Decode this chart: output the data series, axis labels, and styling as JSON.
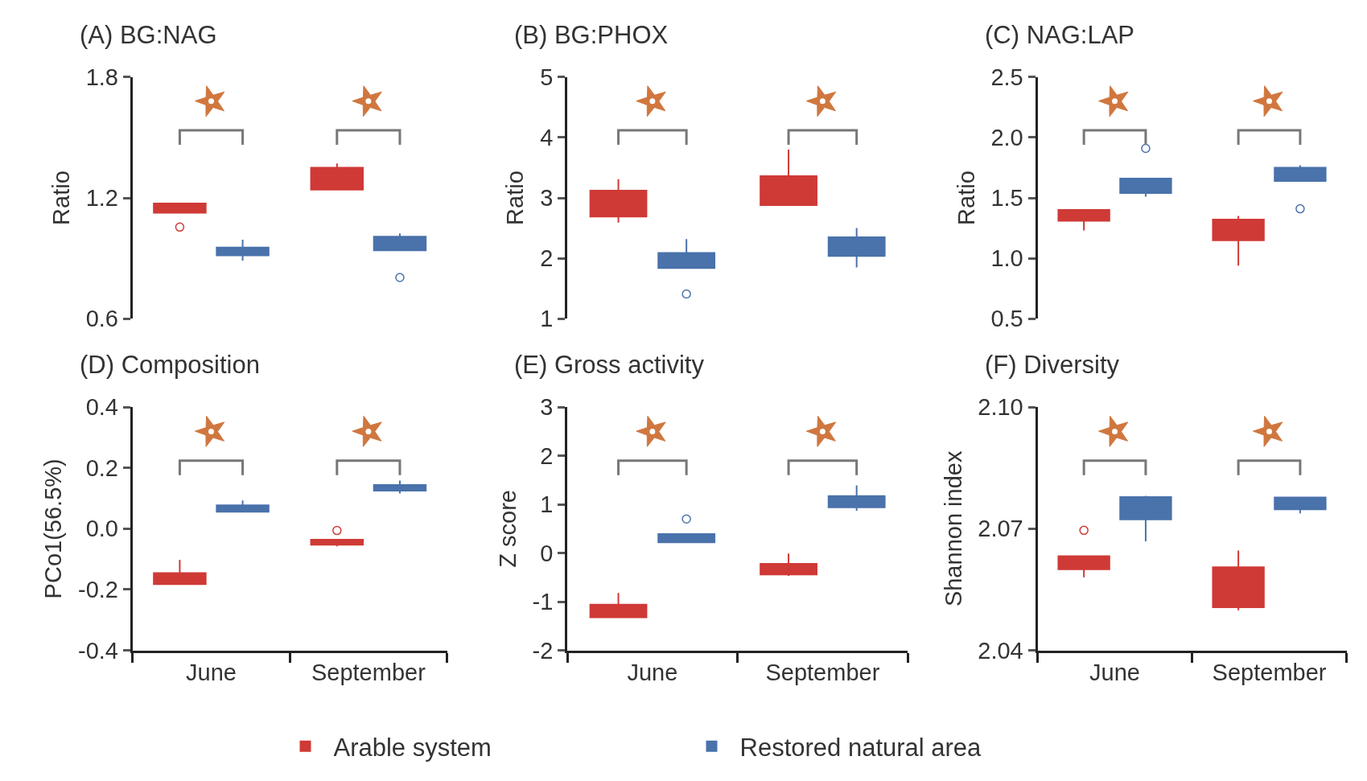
{
  "chart_data": [
    {
      "type": "box",
      "title": "(A) BG:NAG",
      "ylabel": "Ratio",
      "categories": [
        "June",
        "September"
      ],
      "ylim": [
        0.6,
        1.8
      ],
      "yticks": [
        0.6,
        1.2,
        1.8
      ],
      "tick_labels": "y",
      "legend": "bottom",
      "series": [
        {
          "name": "Arable system",
          "color": "#cf3a36",
          "boxes": [
            {
              "low": 1.126,
              "q1": 1.126,
              "median": 1.162,
              "q3": 1.172,
              "high": 1.172,
              "outliers": [
                1.055
              ]
            },
            {
              "low": 1.241,
              "q1": 1.241,
              "median": 1.291,
              "q3": 1.35,
              "high": 1.371
            }
          ]
        },
        {
          "name": "Restored natural area",
          "color": "#4a72ab",
          "boxes": [
            {
              "low": 0.889,
              "q1": 0.915,
              "median": 0.932,
              "q3": 0.954,
              "high": 0.993
            },
            {
              "low": 0.94,
              "q1": 0.94,
              "median": 0.993,
              "q3": 1.008,
              "high": 1.024,
              "outliers": [
                0.805
              ]
            }
          ]
        }
      ]
    },
    {
      "type": "box",
      "title": "(B) BG:PHOX",
      "ylabel": "Ratio",
      "categories": [
        "June",
        "September"
      ],
      "ylim": [
        1,
        5
      ],
      "yticks": [
        1,
        2,
        3,
        4,
        5
      ],
      "tick_labels": "y",
      "series": [
        {
          "name": "Arable system",
          "color": "#cf3a36",
          "boxes": [
            {
              "low": 2.59,
              "q1": 2.69,
              "median": 2.88,
              "q3": 3.12,
              "high": 3.31
            },
            {
              "low": 2.88,
              "q1": 2.88,
              "median": 3.05,
              "q3": 3.36,
              "high": 3.8
            }
          ]
        },
        {
          "name": "Restored natural area",
          "color": "#4a72ab",
          "boxes": [
            {
              "low": 1.84,
              "q1": 1.84,
              "median": 1.99,
              "q3": 2.09,
              "high": 2.32,
              "outliers": [
                1.41
              ]
            },
            {
              "low": 1.85,
              "q1": 2.04,
              "median": 2.2,
              "q3": 2.35,
              "high": 2.5
            }
          ]
        }
      ]
    },
    {
      "type": "box",
      "title": "(C) NAG:LAP",
      "ylabel": "Ratio",
      "categories": [
        "June",
        "September"
      ],
      "ylim": [
        0.5,
        2.5
      ],
      "yticks": [
        0.5,
        {
          "value": 1,
          "label": "1.0"
        },
        1.5,
        {
          "value": 2,
          "label": "2.0"
        },
        2.5
      ],
      "tick_labels": "y",
      "series": [
        {
          "name": "Arable system",
          "color": "#cf3a36",
          "boxes": [
            {
              "low": 1.23,
              "q1": 1.31,
              "median": 1.37,
              "q3": 1.4,
              "high": 1.4
            },
            {
              "low": 0.94,
              "q1": 1.15,
              "median": 1.27,
              "q3": 1.32,
              "high": 1.35
            }
          ]
        },
        {
          "name": "Restored natural area",
          "color": "#4a72ab",
          "boxes": [
            {
              "low": 1.51,
              "q1": 1.54,
              "median": 1.57,
              "q3": 1.66,
              "high": 1.66,
              "outliers": [
                1.91
              ]
            },
            {
              "low": 1.64,
              "q1": 1.64,
              "median": 1.73,
              "q3": 1.75,
              "high": 1.77,
              "outliers": [
                1.41
              ]
            }
          ]
        }
      ]
    },
    {
      "type": "box",
      "title": "(D) Composition",
      "ylabel": "PCo1(56.5%)",
      "categories": [
        "June",
        "September"
      ],
      "ylim": [
        -0.4,
        0.4
      ],
      "yticks": [
        {
          "value": -0.4,
          "label": "-0.4"
        },
        {
          "value": -0.2,
          "label": "-0.2"
        },
        {
          "value": 0,
          "label": "0.0"
        },
        0.2,
        0.4
      ],
      "series": [
        {
          "name": "Arable system",
          "color": "#cf3a36",
          "boxes": [
            {
              "low": -0.182,
              "q1": -0.182,
              "median": -0.168,
              "q3": -0.146,
              "high": -0.102
            },
            {
              "low": -0.058,
              "q1": -0.053,
              "median": -0.044,
              "q3": -0.036,
              "high": -0.036,
              "outliers": [
                -0.006
              ]
            }
          ]
        },
        {
          "name": "Restored natural area",
          "color": "#4a72ab",
          "boxes": [
            {
              "low": 0.056,
              "q1": 0.056,
              "median": 0.068,
              "q3": 0.077,
              "high": 0.093
            },
            {
              "low": 0.116,
              "q1": 0.125,
              "median": 0.133,
              "q3": 0.144,
              "high": 0.158
            }
          ]
        }
      ]
    },
    {
      "type": "box",
      "title": "(E) Gross activity",
      "ylabel": "Z score",
      "categories": [
        "June",
        "September"
      ],
      "ylim": [
        -2,
        3
      ],
      "yticks": [
        {
          "value": -2,
          "label": "-2"
        },
        {
          "value": -1,
          "label": "-1"
        },
        0,
        1,
        2,
        3
      ],
      "series": [
        {
          "name": "Arable system",
          "color": "#cf3a36",
          "boxes": [
            {
              "low": -1.32,
              "q1": -1.32,
              "median": -1.22,
              "q3": -1.06,
              "high": -0.82
            },
            {
              "low": -0.47,
              "q1": -0.44,
              "median": -0.35,
              "q3": -0.22,
              "high": -0.01
            }
          ]
        },
        {
          "name": "Restored natural area",
          "color": "#4a72ab",
          "boxes": [
            {
              "low": 0.22,
              "q1": 0.22,
              "median": 0.31,
              "q3": 0.39,
              "high": 0.39,
              "outliers": [
                0.7
              ]
            },
            {
              "low": 0.87,
              "q1": 0.94,
              "median": 1.03,
              "q3": 1.17,
              "high": 1.39
            }
          ]
        }
      ]
    },
    {
      "type": "box",
      "title": "(F) Diversity",
      "ylabel": "Shannon index",
      "categories": [
        "June",
        "September"
      ],
      "ylim": [
        2.04,
        2.1
      ],
      "yticks": [
        2.04,
        2.07,
        {
          "value": 2.1,
          "label": "2.10"
        }
      ],
      "series": [
        {
          "name": "Arable system",
          "color": "#cf3a36",
          "boxes": [
            {
              "low": 2.058,
              "q1": 2.06,
              "median": 2.0609,
              "q3": 2.0632,
              "high": 2.0632,
              "outliers": [
                2.0696
              ]
            },
            {
              "low": 2.0499,
              "q1": 2.0506,
              "median": 2.0549,
              "q3": 2.0605,
              "high": 2.0646
            }
          ]
        },
        {
          "name": "Restored natural area",
          "color": "#4a72ab",
          "boxes": [
            {
              "low": 2.0669,
              "q1": 2.0723,
              "median": 2.0759,
              "q3": 2.0778,
              "high": 2.0781
            },
            {
              "low": 2.0738,
              "q1": 2.0748,
              "median": 2.0763,
              "q3": 2.0777,
              "high": 2.0777
            }
          ]
        }
      ]
    }
  ]
}
